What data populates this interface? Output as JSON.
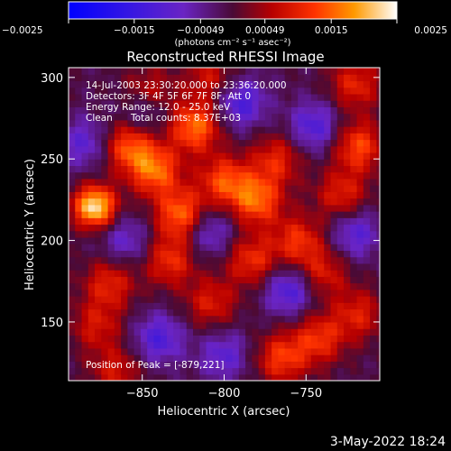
{
  "chart_data": {
    "type": "heatmap",
    "title": "Reconstructed RHESSI Image",
    "xlabel": "Heliocentric X (arcsec)",
    "ylabel": "Heliocentric Y (arcsec)",
    "xlim": [
      -895,
      -705
    ],
    "ylim": [
      114,
      306
    ],
    "x_ticks": [
      -850,
      -800,
      -750
    ],
    "y_ticks": [
      150,
      200,
      250,
      300
    ],
    "x_tick_labels": [
      "−850",
      "−800",
      "−750"
    ],
    "y_tick_labels": [
      "150",
      "200",
      "250",
      "300"
    ],
    "colorbar": {
      "range": [
        -0.0025,
        0.0025
      ],
      "tick_values": [
        -0.0025,
        -0.0015,
        -0.00049,
        0.00049,
        0.0015,
        0.0025
      ],
      "tick_labels": [
        "−0.0025",
        "−0.0015",
        "−0.00049",
        "0.00049",
        "0.0015",
        "0.0025"
      ],
      "units_label": "(photons cm⁻² s⁻¹ asec⁻²)"
    },
    "annotations": {
      "time_range": "14-Jul-2003 23:30:20.000 to 23:36:20.000",
      "detectors": "Detectors: 3F 4F 5F 6F 7F 8F, Att 0",
      "energy": "Energy Range: 12.0 - 25.0 keV",
      "algorithm": "Clean",
      "counts": "Total counts: 8.37E+03",
      "peak": "Position of Peak = [-879,221]"
    },
    "peak": [
      -879,
      221
    ],
    "sources": [
      {
        "x": -879,
        "y": 221,
        "amp": 0.0025
      },
      {
        "x": -858,
        "y": 258,
        "amp": 0.0015
      },
      {
        "x": -842,
        "y": 243,
        "amp": 0.0016
      },
      {
        "x": -818,
        "y": 270,
        "amp": 0.0017
      },
      {
        "x": -826,
        "y": 216,
        "amp": 0.0017
      },
      {
        "x": -833,
        "y": 188,
        "amp": 0.0012
      },
      {
        "x": -780,
        "y": 225,
        "amp": 0.0016
      },
      {
        "x": -800,
        "y": 237,
        "amp": 0.0014
      },
      {
        "x": -768,
        "y": 250,
        "amp": 0.0011
      },
      {
        "x": -755,
        "y": 200,
        "amp": 0.0012
      },
      {
        "x": -740,
        "y": 180,
        "amp": 0.001
      },
      {
        "x": -718,
        "y": 258,
        "amp": 0.0014
      },
      {
        "x": -728,
        "y": 228,
        "amp": 0.0011
      },
      {
        "x": -783,
        "y": 188,
        "amp": 0.0012
      },
      {
        "x": -808,
        "y": 162,
        "amp": 0.001
      },
      {
        "x": -870,
        "y": 174,
        "amp": 0.0011
      },
      {
        "x": -878,
        "y": 148,
        "amp": 0.0009
      },
      {
        "x": -765,
        "y": 128,
        "amp": 0.0013
      },
      {
        "x": -742,
        "y": 140,
        "amp": 0.0012
      },
      {
        "x": -718,
        "y": 155,
        "amp": 0.001
      },
      {
        "x": -846,
        "y": 290,
        "amp": 0.0011
      },
      {
        "x": -808,
        "y": 300,
        "amp": 0.0009
      },
      {
        "x": -720,
        "y": 296,
        "amp": 0.0011
      },
      {
        "x": -866,
        "y": 120,
        "amp": 0.0009
      },
      {
        "x": -848,
        "y": 280,
        "amp": -0.001
      },
      {
        "x": -790,
        "y": 285,
        "amp": -0.0012
      },
      {
        "x": -745,
        "y": 270,
        "amp": -0.0011
      },
      {
        "x": -810,
        "y": 206,
        "amp": -0.001
      },
      {
        "x": -760,
        "y": 170,
        "amp": -0.0012
      },
      {
        "x": -720,
        "y": 205,
        "amp": -0.001
      },
      {
        "x": -840,
        "y": 140,
        "amp": -0.0011
      },
      {
        "x": -800,
        "y": 130,
        "amp": -0.0009
      },
      {
        "x": -885,
        "y": 260,
        "amp": -0.0009
      },
      {
        "x": -860,
        "y": 200,
        "amp": -0.0008
      }
    ]
  },
  "footer": {
    "date": "3-May-2022 18:24"
  }
}
